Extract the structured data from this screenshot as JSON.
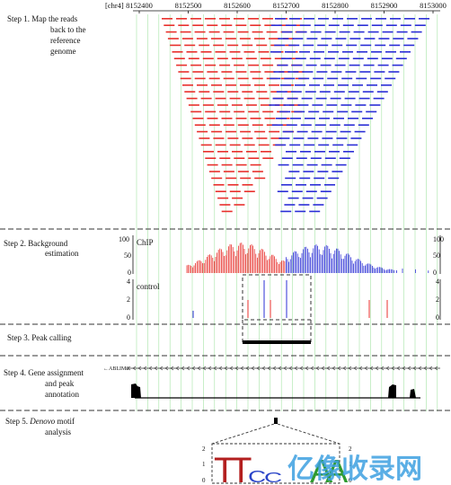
{
  "coords": {
    "chrom": "[chr4]",
    "ticks": [
      "8152400",
      "8152500",
      "8152600",
      "8152700",
      "8152800",
      "8152900",
      "8153000"
    ]
  },
  "steps": [
    {
      "lines": [
        "Step 1.  Map the reads",
        "back to the",
        "reference",
        "genome"
      ]
    },
    {
      "lines": [
        "Step 2.  Background",
        "estimation"
      ]
    },
    {
      "lines": [
        "Step 3.  Peak calling"
      ]
    },
    {
      "lines": [
        "Step 4.  Gene assignment",
        "and  peak",
        "annotation"
      ]
    },
    {
      "lines": [
        "Step 5.  ",
        "Denovo",
        " motif",
        "analysis"
      ]
    }
  ],
  "chip": {
    "label": "ChIP",
    "yticks": [
      "100",
      "50",
      "0"
    ]
  },
  "control": {
    "label": "control",
    "yticks": [
      "4",
      "2",
      "0"
    ]
  },
  "gene": {
    "name": "ABLIM2"
  },
  "motif": {
    "yticks": [
      "2",
      "1",
      "0"
    ],
    "letters": [
      "T",
      "T",
      "C",
      "C",
      "A",
      "A"
    ]
  },
  "watermark": "亿像收录网",
  "colors": {
    "forward": "#e8302c",
    "reverse": "#2b2fd6",
    "gridline": "#7fd97f",
    "dashed": "#333333",
    "motif_T": "#b31f1f",
    "motif_C": "#2a44c8",
    "motif_A": "#2f9a2f",
    "watermark": "#3da0e0"
  }
}
